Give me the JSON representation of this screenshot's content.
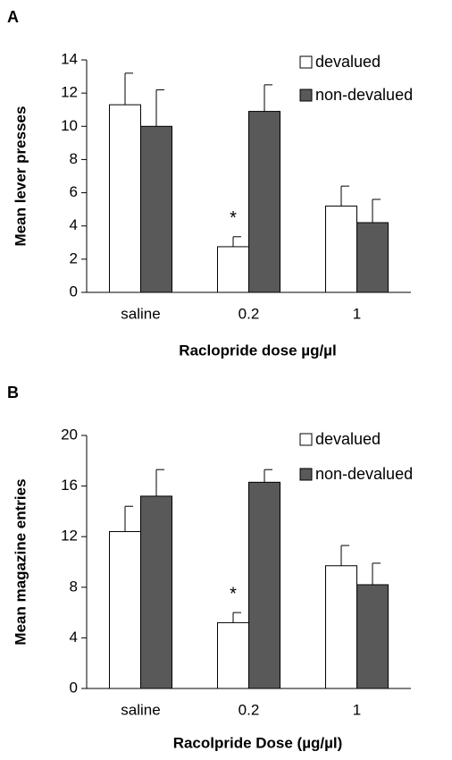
{
  "chart_data": [
    {
      "type": "bar",
      "panel_label": "A",
      "x_label": "Raclopride dose µg/µl",
      "y_label": "Mean lever presses",
      "categories": [
        "saline",
        "0.2",
        "1"
      ],
      "series": [
        {
          "name": "devalued",
          "color": "#ffffff",
          "values": [
            11.3,
            2.75,
            5.2
          ],
          "errors": [
            1.9,
            0.6,
            1.2
          ]
        },
        {
          "name": "non-devalued",
          "color": "#595959",
          "values": [
            10.0,
            10.9,
            4.2
          ],
          "errors": [
            2.2,
            1.6,
            1.4
          ]
        }
      ],
      "annotation": "*",
      "ylim": [
        0,
        14
      ],
      "yticks": [
        0,
        2,
        4,
        6,
        8,
        10,
        12,
        14
      ],
      "legend": "upper right"
    },
    {
      "type": "bar",
      "panel_label": "B",
      "x_label": "Racolpride Dose (µg/µl)",
      "y_label": "Mean magazine entries",
      "categories": [
        "saline",
        "0.2",
        "1"
      ],
      "series": [
        {
          "name": "devalued",
          "color": "#ffffff",
          "values": [
            12.4,
            5.2,
            9.7
          ],
          "errors": [
            2.0,
            0.8,
            1.6
          ]
        },
        {
          "name": "non-devalued",
          "color": "#595959",
          "values": [
            15.2,
            16.3,
            8.2
          ],
          "errors": [
            2.1,
            1.0,
            1.7
          ]
        }
      ],
      "annotation": "*",
      "ylim": [
        0,
        20
      ],
      "yticks": [
        0,
        4,
        8,
        12,
        16,
        20
      ],
      "legend": "upper right"
    }
  ]
}
